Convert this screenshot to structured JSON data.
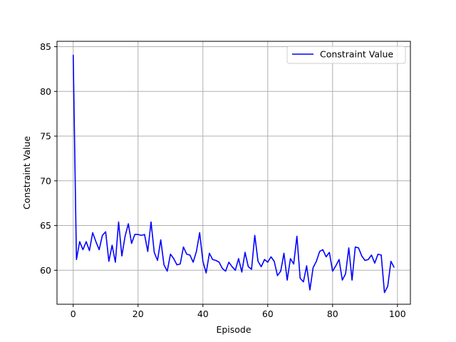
{
  "chart_data": {
    "type": "line",
    "title": "",
    "xlabel": "Episode",
    "ylabel": "Constraint Value",
    "xlim": [
      -5,
      104
    ],
    "ylim": [
      56.2,
      85.6
    ],
    "xticks": [
      0,
      20,
      40,
      60,
      80,
      100
    ],
    "yticks": [
      60,
      65,
      70,
      75,
      80,
      85
    ],
    "grid": true,
    "legend_position": "top-right",
    "series": [
      {
        "name": "Constraint Value",
        "color": "#0000ff",
        "x": [
          0,
          1,
          2,
          3,
          4,
          5,
          6,
          7,
          8,
          9,
          10,
          11,
          12,
          13,
          14,
          15,
          16,
          17,
          18,
          19,
          20,
          21,
          22,
          23,
          24,
          25,
          26,
          27,
          28,
          29,
          30,
          31,
          32,
          33,
          34,
          35,
          36,
          37,
          38,
          39,
          40,
          41,
          42,
          43,
          44,
          45,
          46,
          47,
          48,
          49,
          50,
          51,
          52,
          53,
          54,
          55,
          56,
          57,
          58,
          59,
          60,
          61,
          62,
          63,
          64,
          65,
          66,
          67,
          68,
          69,
          70,
          71,
          72,
          73,
          74,
          75,
          76,
          77,
          78,
          79,
          80,
          81,
          82,
          83,
          84,
          85,
          86,
          87,
          88,
          89,
          90,
          91,
          92,
          93,
          94,
          95,
          96,
          97,
          98,
          99
        ],
        "y": [
          84.1,
          61.2,
          63.2,
          62.3,
          63.2,
          62.2,
          64.2,
          63.2,
          62.3,
          63.9,
          64.3,
          61.0,
          62.8,
          60.9,
          65.4,
          61.6,
          63.8,
          65.2,
          63.0,
          64.0,
          64.0,
          63.9,
          64.0,
          62.1,
          65.4,
          62.0,
          61.1,
          63.4,
          60.6,
          59.9,
          61.8,
          61.3,
          60.6,
          60.7,
          62.6,
          61.8,
          61.7,
          60.9,
          62.1,
          64.2,
          61.0,
          59.7,
          61.9,
          61.2,
          61.1,
          60.9,
          60.2,
          59.9,
          60.9,
          60.4,
          60.0,
          61.3,
          59.8,
          62.0,
          60.4,
          60.1,
          63.9,
          61.0,
          60.4,
          61.2,
          60.9,
          61.5,
          61.0,
          59.4,
          59.9,
          61.9,
          58.9,
          61.3,
          60.7,
          63.8,
          59.1,
          58.7,
          60.5,
          57.8,
          60.3,
          61.0,
          62.1,
          62.3,
          61.5,
          62.0,
          59.9,
          60.5,
          61.2,
          58.9,
          59.6,
          62.5,
          58.9,
          62.6,
          62.5,
          61.6,
          61.1,
          61.2,
          61.7,
          60.8,
          61.8,
          61.7,
          57.5,
          58.2,
          61.0,
          60.3
        ]
      }
    ]
  }
}
